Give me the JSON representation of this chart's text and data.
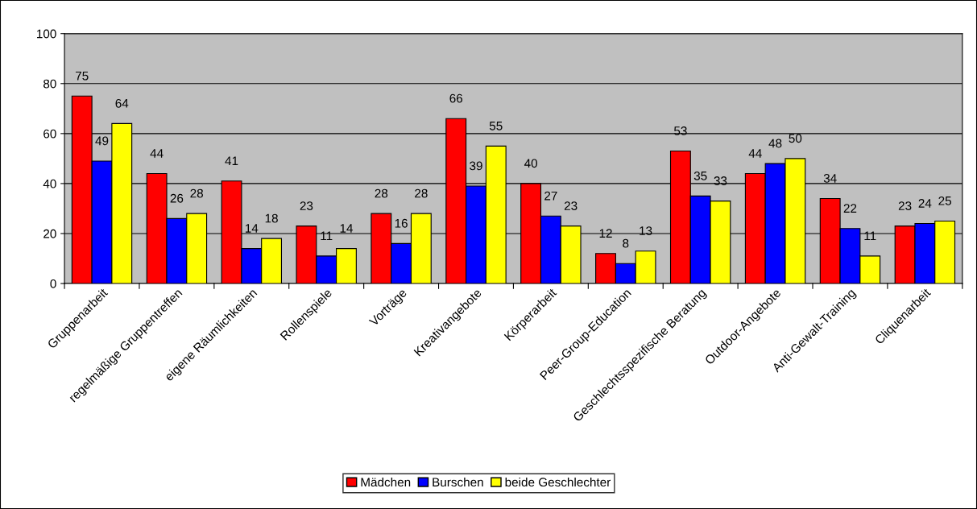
{
  "chart_data": {
    "type": "bar",
    "categories": [
      "Gruppenarbeit",
      "regelmäßige Gruppentreffen",
      "eigene Räumlichkeiten",
      "Rollenspiele",
      "Vorträge",
      "Kreativangebote",
      "Körperarbeit",
      "Peer-Group-Education",
      "Geschlechtsspezifische Beratung",
      "Outdoor-Angebote",
      "Anti-Gewalt-Training",
      "Cliquenarbeit"
    ],
    "series": [
      {
        "name": "Mädchen",
        "color": "#ff0000",
        "values": [
          75,
          44,
          41,
          23,
          28,
          66,
          40,
          12,
          53,
          44,
          34,
          23
        ]
      },
      {
        "name": "Burschen",
        "color": "#0000ff",
        "values": [
          49,
          26,
          14,
          11,
          16,
          39,
          27,
          8,
          35,
          48,
          22,
          24
        ]
      },
      {
        "name": "beide Geschlechter",
        "color": "#ffff00",
        "values": [
          64,
          28,
          18,
          14,
          28,
          55,
          23,
          13,
          33,
          50,
          11,
          25
        ]
      }
    ],
    "ylim": [
      0,
      100
    ],
    "yticks": [
      0,
      20,
      40,
      60,
      80,
      100
    ],
    "grid": "y",
    "legend": "bottom",
    "data_labels": true
  }
}
